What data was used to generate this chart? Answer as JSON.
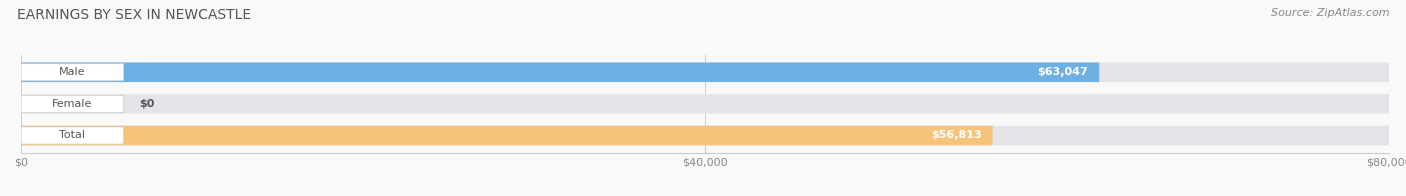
{
  "title": "EARNINGS BY SEX IN NEWCASTLE",
  "source": "Source: ZipAtlas.com",
  "categories": [
    "Male",
    "Female",
    "Total"
  ],
  "values": [
    63047,
    0,
    56813
  ],
  "bar_colors": [
    "#6eb0e3",
    "#f4a0b8",
    "#f5c37a"
  ],
  "bar_bg_color": "#e4e4e8",
  "bar_labels": [
    "$63,047",
    "$0",
    "$56,813"
  ],
  "xlim": [
    0,
    80000
  ],
  "xtick_labels": [
    "$0",
    "$40,000",
    "$80,000"
  ],
  "xtick_vals": [
    0,
    40000,
    80000
  ],
  "title_color": "#555555",
  "title_fontsize": 10,
  "source_fontsize": 8,
  "bar_height": 0.62,
  "background_color": "#f9f9f9",
  "label_text_color": "#555555",
  "value_text_color": "#ffffff",
  "pill_edge_color": "#cccccc"
}
